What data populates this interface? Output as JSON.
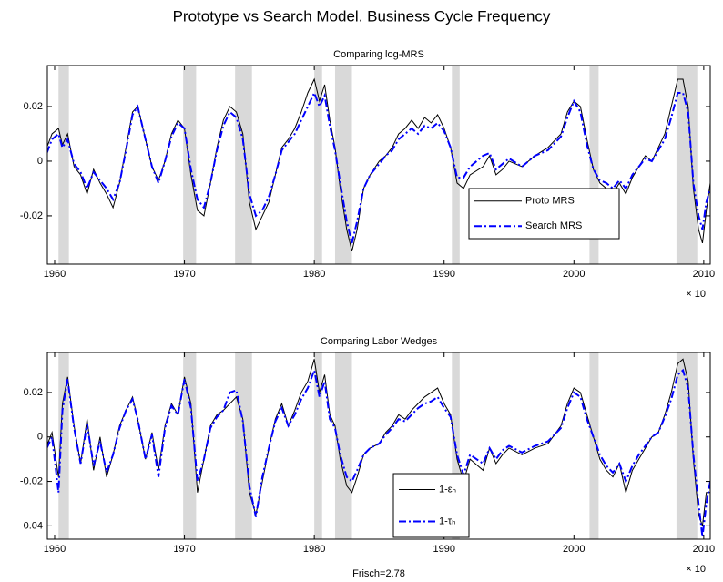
{
  "title": "Prototype vs Search Model. Business Cycle Frequency",
  "chart_data": [
    {
      "type": "line",
      "title": "Comparing log-MRS",
      "exponent_label": "× 10",
      "legend": "lower right",
      "x": [
        1959.4,
        1959.8,
        1960.3,
        1960.6,
        1961.0,
        1961.5,
        1962.0,
        1962.5,
        1963.0,
        1963.5,
        1964.0,
        1964.5,
        1965.0,
        1965.5,
        1966.0,
        1966.4,
        1967.0,
        1967.5,
        1968.0,
        1968.5,
        1969.0,
        1969.5,
        1970.0,
        1970.5,
        1971.0,
        1971.5,
        1972.0,
        1972.5,
        1973.0,
        1973.5,
        1974.0,
        1974.5,
        1975.0,
        1975.5,
        1976.0,
        1976.5,
        1977.0,
        1977.5,
        1978.0,
        1978.5,
        1979.0,
        1979.5,
        1980.0,
        1980.4,
        1980.8,
        1981.2,
        1981.6,
        1982.0,
        1982.5,
        1982.9,
        1983.3,
        1983.8,
        1984.3,
        1985.0,
        1985.5,
        1986.0,
        1986.5,
        1987.0,
        1987.5,
        1988.0,
        1988.5,
        1989.0,
        1989.5,
        1990.0,
        1990.5,
        1991.0,
        1991.5,
        1992.0,
        1993.0,
        1993.5,
        1994.0,
        1994.5,
        1995.0,
        1996.0,
        1997.0,
        1998.0,
        1999.0,
        1999.5,
        2000.0,
        2000.5,
        2001.0,
        2001.5,
        2002.0,
        2002.5,
        2003.0,
        2003.5,
        2004.0,
        2004.5,
        2005.0,
        2005.5,
        2006.0,
        2006.5,
        2007.0,
        2007.5,
        2008.0,
        2008.4,
        2008.8,
        2009.2,
        2009.6,
        2009.9,
        2010.2,
        2010.5
      ],
      "series": [
        {
          "name": "Proto MRS",
          "color": "#000000",
          "style": "solid",
          "values": [
            0.005,
            0.01,
            0.012,
            0.006,
            0.01,
            -0.002,
            -0.005,
            -0.012,
            -0.003,
            -0.008,
            -0.012,
            -0.017,
            -0.008,
            0.005,
            0.018,
            0.02,
            0.008,
            -0.002,
            -0.007,
            0.0,
            0.01,
            0.015,
            0.012,
            -0.005,
            -0.018,
            -0.02,
            -0.008,
            0.005,
            0.015,
            0.02,
            0.018,
            0.01,
            -0.015,
            -0.025,
            -0.02,
            -0.015,
            -0.005,
            0.005,
            0.008,
            0.012,
            0.018,
            0.025,
            0.03,
            0.022,
            0.028,
            0.015,
            0.005,
            -0.01,
            -0.025,
            -0.033,
            -0.025,
            -0.01,
            -0.005,
            0.0,
            0.002,
            0.005,
            0.01,
            0.012,
            0.015,
            0.012,
            0.016,
            0.014,
            0.017,
            0.012,
            0.005,
            -0.008,
            -0.01,
            -0.005,
            -0.002,
            0.002,
            -0.005,
            -0.003,
            0.0,
            -0.002,
            0.002,
            0.005,
            0.01,
            0.018,
            0.022,
            0.02,
            0.008,
            -0.003,
            -0.008,
            -0.01,
            -0.012,
            -0.008,
            -0.012,
            -0.006,
            -0.002,
            0.002,
            0.0,
            0.005,
            0.01,
            0.02,
            0.03,
            0.03,
            0.02,
            -0.01,
            -0.025,
            -0.03,
            -0.018,
            -0.008
          ]
        },
        {
          "name": "Search MRS",
          "color": "#0000ff",
          "style": "dashdot",
          "values": [
            0.003,
            0.008,
            0.01,
            0.005,
            0.008,
            -0.001,
            -0.004,
            -0.01,
            -0.004,
            -0.007,
            -0.01,
            -0.014,
            -0.008,
            0.004,
            0.017,
            0.02,
            0.008,
            -0.002,
            -0.008,
            0.0,
            0.009,
            0.014,
            0.012,
            -0.003,
            -0.014,
            -0.017,
            -0.008,
            0.004,
            0.013,
            0.018,
            0.016,
            0.008,
            -0.012,
            -0.02,
            -0.018,
            -0.013,
            -0.005,
            0.004,
            0.007,
            0.01,
            0.015,
            0.02,
            0.025,
            0.02,
            0.024,
            0.013,
            0.004,
            -0.008,
            -0.022,
            -0.03,
            -0.022,
            -0.01,
            -0.005,
            -0.001,
            0.002,
            0.004,
            0.008,
            0.01,
            0.012,
            0.01,
            0.013,
            0.012,
            0.014,
            0.011,
            0.005,
            -0.006,
            -0.006,
            -0.002,
            0.002,
            0.003,
            -0.003,
            -0.001,
            0.001,
            -0.002,
            0.002,
            0.004,
            0.009,
            0.016,
            0.022,
            0.018,
            0.006,
            -0.003,
            -0.007,
            -0.008,
            -0.01,
            -0.007,
            -0.01,
            -0.005,
            -0.002,
            0.001,
            0.0,
            0.004,
            0.008,
            0.016,
            0.025,
            0.025,
            0.018,
            -0.008,
            -0.02,
            -0.025,
            -0.015,
            -0.01
          ]
        }
      ],
      "shaded_regions": [
        [
          1960.3,
          1961.1
        ],
        [
          1969.9,
          1970.9
        ],
        [
          1973.9,
          1975.2
        ],
        [
          1980.0,
          1980.6
        ],
        [
          1981.6,
          1982.9
        ],
        [
          1990.6,
          1991.2
        ],
        [
          2001.2,
          2001.9
        ],
        [
          2007.9,
          2009.5
        ]
      ],
      "shade_color": "#d9d9d9",
      "xlim": [
        1959.44,
        2010.5
      ],
      "ylim": [
        -0.0377,
        0.035
      ],
      "xticks": [
        1960,
        1970,
        1980,
        1990,
        2000,
        2010
      ],
      "yticks": [
        -0.02,
        0,
        0.02
      ]
    },
    {
      "type": "line",
      "title": "Comparing Labor Wedges",
      "xlabel": "Frisch=2.78",
      "exponent_label": "× 10",
      "legend": "lower center",
      "x": [
        1959.4,
        1959.8,
        1960.3,
        1960.6,
        1961.0,
        1961.5,
        1962.0,
        1962.5,
        1963.0,
        1963.5,
        1964.0,
        1964.5,
        1965.0,
        1965.5,
        1966.0,
        1966.4,
        1967.0,
        1967.5,
        1968.0,
        1968.5,
        1969.0,
        1969.5,
        1970.0,
        1970.5,
        1971.0,
        1971.5,
        1972.0,
        1972.5,
        1973.0,
        1973.5,
        1974.0,
        1974.5,
        1975.0,
        1975.5,
        1976.0,
        1976.5,
        1977.0,
        1977.5,
        1978.0,
        1978.5,
        1979.0,
        1979.5,
        1980.0,
        1980.4,
        1980.8,
        1981.2,
        1981.6,
        1982.0,
        1982.5,
        1982.9,
        1983.3,
        1983.8,
        1984.3,
        1985.0,
        1985.5,
        1986.0,
        1986.5,
        1987.0,
        1987.5,
        1988.0,
        1988.5,
        1989.0,
        1989.5,
        1990.0,
        1990.5,
        1991.0,
        1991.5,
        1992.0,
        1993.0,
        1993.5,
        1994.0,
        1994.5,
        1995.0,
        1996.0,
        1997.0,
        1998.0,
        1999.0,
        1999.5,
        2000.0,
        2000.5,
        2001.0,
        2001.5,
        2002.0,
        2002.5,
        2003.0,
        2003.5,
        2004.0,
        2004.5,
        2005.0,
        2005.5,
        2006.0,
        2006.5,
        2007.0,
        2007.5,
        2008.0,
        2008.4,
        2008.8,
        2009.2,
        2009.6,
        2009.9,
        2010.2,
        2010.5
      ],
      "series": [
        {
          "name": "1-εₕ",
          "color": "#000000",
          "style": "solid",
          "values": [
            -0.004,
            0.002,
            -0.018,
            0.015,
            0.027,
            0.005,
            -0.012,
            0.008,
            -0.015,
            0.0,
            -0.018,
            -0.008,
            0.005,
            0.012,
            0.018,
            0.008,
            -0.01,
            0.002,
            -0.015,
            0.005,
            0.015,
            0.01,
            0.027,
            0.015,
            -0.025,
            -0.01,
            0.005,
            0.01,
            0.012,
            0.015,
            0.018,
            0.008,
            -0.025,
            -0.035,
            -0.02,
            -0.005,
            0.008,
            0.015,
            0.005,
            0.012,
            0.02,
            0.025,
            0.035,
            0.02,
            0.028,
            0.01,
            0.005,
            -0.01,
            -0.022,
            -0.025,
            -0.018,
            -0.008,
            -0.005,
            -0.003,
            0.002,
            0.005,
            0.01,
            0.008,
            0.012,
            0.015,
            0.018,
            0.02,
            0.022,
            0.015,
            0.01,
            -0.01,
            -0.02,
            -0.01,
            -0.015,
            -0.005,
            -0.012,
            -0.008,
            -0.005,
            -0.008,
            -0.005,
            -0.003,
            0.005,
            0.015,
            0.022,
            0.02,
            0.01,
            0.0,
            -0.01,
            -0.015,
            -0.018,
            -0.012,
            -0.025,
            -0.015,
            -0.01,
            -0.005,
            0.0,
            0.002,
            0.01,
            0.02,
            0.033,
            0.035,
            0.025,
            -0.01,
            -0.035,
            -0.04,
            -0.025,
            -0.025
          ]
        },
        {
          "name": "1-τₕ",
          "color": "#0000ff",
          "style": "dashdot",
          "values": [
            -0.005,
            0.0,
            -0.025,
            0.012,
            0.026,
            0.004,
            -0.012,
            0.006,
            -0.013,
            -0.002,
            -0.016,
            -0.008,
            0.004,
            0.012,
            0.017,
            0.008,
            -0.01,
            0.001,
            -0.018,
            0.004,
            0.014,
            0.01,
            0.026,
            0.013,
            -0.02,
            -0.01,
            0.004,
            0.009,
            0.012,
            0.02,
            0.021,
            0.007,
            -0.022,
            -0.036,
            -0.018,
            -0.005,
            0.007,
            0.013,
            0.005,
            0.01,
            0.017,
            0.022,
            0.03,
            0.018,
            0.025,
            0.008,
            0.004,
            -0.008,
            -0.018,
            -0.02,
            -0.015,
            -0.008,
            -0.005,
            -0.003,
            0.001,
            0.004,
            0.008,
            0.007,
            0.01,
            0.013,
            0.015,
            0.016,
            0.018,
            0.013,
            0.009,
            -0.008,
            -0.017,
            -0.008,
            -0.012,
            -0.005,
            -0.01,
            -0.006,
            -0.004,
            -0.007,
            -0.004,
            -0.002,
            0.004,
            0.013,
            0.02,
            0.018,
            0.008,
            0.0,
            -0.008,
            -0.013,
            -0.016,
            -0.012,
            -0.02,
            -0.013,
            -0.008,
            -0.004,
            0.0,
            0.002,
            0.009,
            0.017,
            0.028,
            0.03,
            0.022,
            -0.008,
            -0.03,
            -0.045,
            -0.03,
            -0.02
          ]
        }
      ],
      "shaded_regions": [
        [
          1960.3,
          1961.1
        ],
        [
          1969.9,
          1970.9
        ],
        [
          1973.9,
          1975.2
        ],
        [
          1980.0,
          1980.6
        ],
        [
          1981.6,
          1982.9
        ],
        [
          1990.6,
          1991.2
        ],
        [
          2001.2,
          2001.9
        ],
        [
          2007.9,
          2009.5
        ]
      ],
      "shade_color": "#d9d9d9",
      "xlim": [
        1959.44,
        2010.5
      ],
      "ylim": [
        -0.046,
        0.038
      ],
      "xticks": [
        1960,
        1970,
        1980,
        1990,
        2000,
        2010
      ],
      "yticks": [
        -0.04,
        -0.02,
        0,
        0.02
      ]
    }
  ]
}
